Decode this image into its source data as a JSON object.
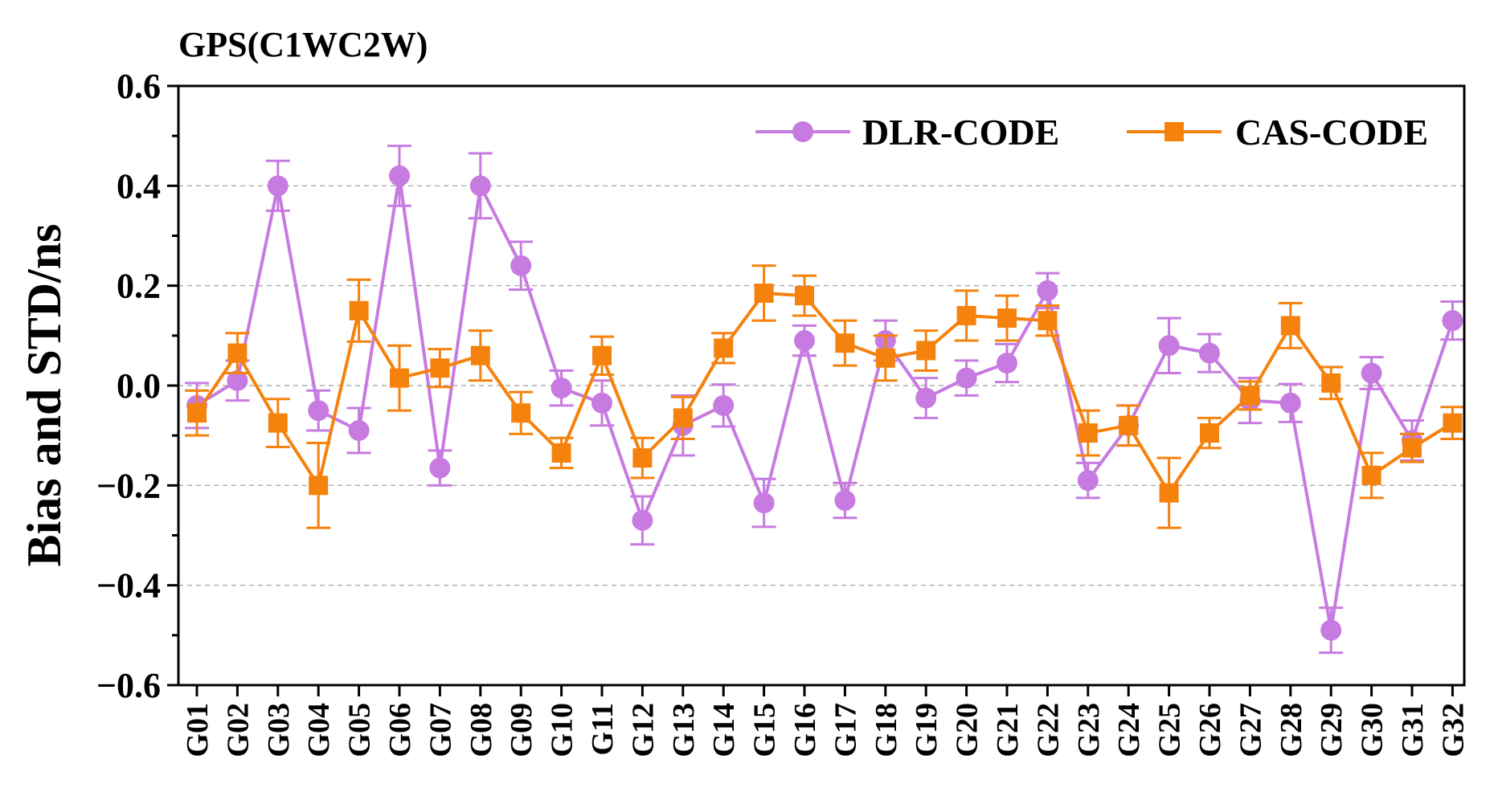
{
  "chart_data": {
    "type": "line",
    "title": "GPS(C1WC2W)",
    "xlabel": "",
    "ylabel": "Bias and STD/ns",
    "ylim": [
      -0.6,
      0.6
    ],
    "yticks": [
      -0.6,
      -0.4,
      -0.2,
      0.0,
      0.2,
      0.4,
      0.6
    ],
    "ytick_labels": [
      "−0.6",
      "−0.4",
      "−0.2",
      "0.0",
      "0.2",
      "0.4",
      "0.6"
    ],
    "grid": true,
    "legend_position": "top-right",
    "categories": [
      "G01",
      "G02",
      "G03",
      "G04",
      "G05",
      "G06",
      "G07",
      "G08",
      "G09",
      "G10",
      "G11",
      "G12",
      "G13",
      "G14",
      "G15",
      "G16",
      "G17",
      "G18",
      "G19",
      "G20",
      "G21",
      "G22",
      "G23",
      "G24",
      "G25",
      "G26",
      "G27",
      "G28",
      "G29",
      "G30",
      "G31",
      "G32"
    ],
    "series": [
      {
        "name": "DLR-CODE",
        "color": "#c77be0",
        "marker": "circle",
        "values": [
          -0.04,
          0.01,
          0.4,
          -0.05,
          -0.09,
          0.42,
          -0.165,
          0.4,
          0.24,
          -0.005,
          -0.035,
          -0.27,
          -0.08,
          -0.04,
          -0.235,
          0.09,
          -0.23,
          0.09,
          -0.025,
          0.015,
          0.045,
          0.19,
          -0.19,
          -0.08,
          0.08,
          0.065,
          -0.03,
          -0.035,
          -0.49,
          0.025,
          -0.11,
          0.13
        ],
        "errors": [
          0.045,
          0.04,
          0.05,
          0.04,
          0.045,
          0.06,
          0.035,
          0.065,
          0.048,
          0.035,
          0.045,
          0.048,
          0.06,
          0.042,
          0.048,
          0.03,
          0.035,
          0.04,
          0.04,
          0.035,
          0.038,
          0.035,
          0.035,
          0.04,
          0.055,
          0.038,
          0.045,
          0.038,
          0.045,
          0.032,
          0.04,
          0.038
        ]
      },
      {
        "name": "CAS-CODE",
        "color": "#f5820d",
        "marker": "square",
        "values": [
          -0.055,
          0.065,
          -0.075,
          -0.2,
          0.15,
          0.015,
          0.035,
          0.06,
          -0.055,
          -0.135,
          0.06,
          -0.145,
          -0.065,
          0.075,
          0.185,
          0.18,
          0.085,
          0.055,
          0.07,
          0.14,
          0.135,
          0.13,
          -0.095,
          -0.08,
          -0.215,
          -0.095,
          -0.02,
          0.12,
          0.005,
          -0.18,
          -0.125,
          -0.075
        ],
        "errors": [
          0.045,
          0.04,
          0.048,
          0.085,
          0.062,
          0.065,
          0.038,
          0.05,
          0.042,
          0.03,
          0.038,
          0.04,
          0.042,
          0.03,
          0.055,
          0.04,
          0.045,
          0.045,
          0.04,
          0.05,
          0.045,
          0.03,
          0.045,
          0.04,
          0.07,
          0.03,
          0.028,
          0.045,
          0.032,
          0.045,
          0.028,
          0.032
        ]
      }
    ]
  }
}
